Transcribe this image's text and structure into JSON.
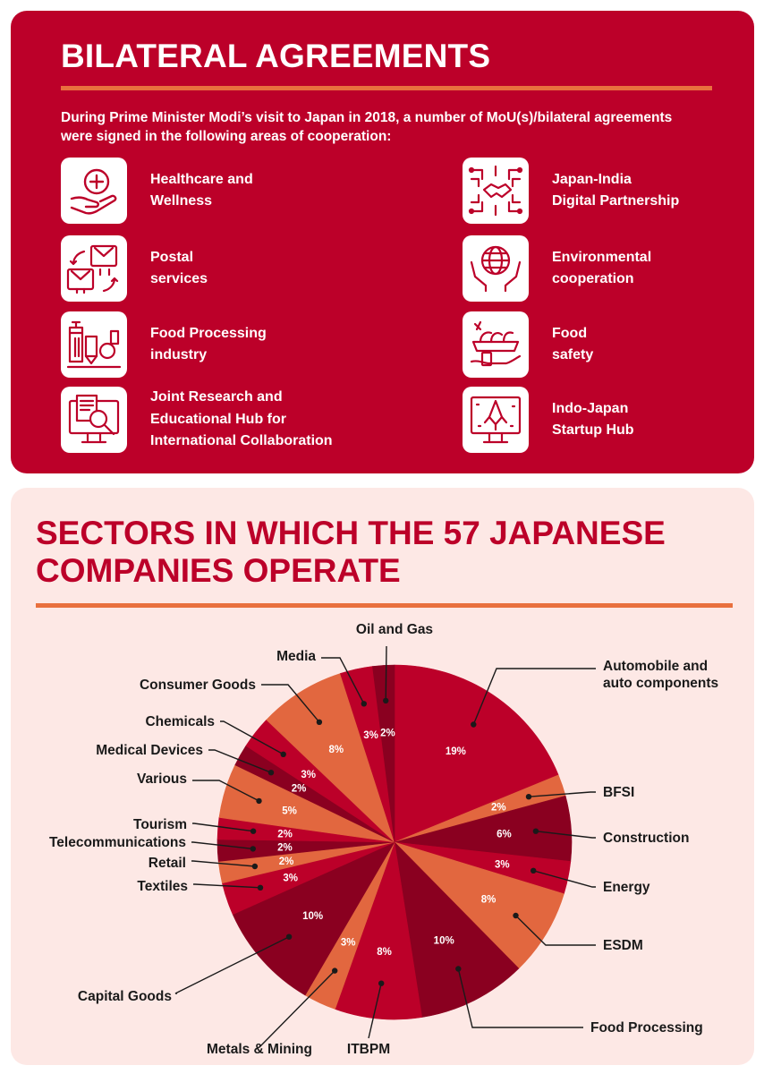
{
  "agreements": {
    "title": "BILATERAL AGREEMENTS",
    "intro": "During Prime Minister Modi’s visit to Japan in 2018, a number of MoU(s)/bilateral agreements were signed in the following areas of cooperation:",
    "items": [
      {
        "label_1": "Healthcare and",
        "label_2": "Wellness",
        "label_3": "",
        "icon": "healthcare-icon"
      },
      {
        "label_1": "Postal",
        "label_2": "services",
        "label_3": "",
        "icon": "postal-icon"
      },
      {
        "label_1": "Food Processing",
        "label_2": "industry",
        "label_3": "",
        "icon": "factory-icon"
      },
      {
        "label_1": "Joint Research and",
        "label_2": "Educational Hub for",
        "label_3": "International Collaboration",
        "icon": "research-icon"
      },
      {
        "label_1": "Japan-India",
        "label_2": "Digital Partnership",
        "label_3": "",
        "icon": "digital-handshake-icon"
      },
      {
        "label_1": "Environmental",
        "label_2": "cooperation",
        "label_3": "",
        "icon": "globe-hands-icon"
      },
      {
        "label_1": "Food",
        "label_2": "safety",
        "label_3": "",
        "icon": "food-safety-icon"
      },
      {
        "label_1": "Indo-Japan",
        "label_2": "Startup Hub",
        "label_3": "",
        "icon": "startup-rocket-icon"
      }
    ]
  },
  "sectors": {
    "title_1": "SECTORS IN WHICH THE 57 JAPANESE",
    "title_2": "COMPANIES OPERATE"
  },
  "colors": {
    "red": "#bc0029",
    "dark_red": "#8a0020",
    "orange": "#e2673f",
    "accent_rule": "#e9703e",
    "bg_pink": "#fde8e5"
  },
  "chart_data": {
    "type": "pie",
    "title": "SECTORS IN WHICH THE 57 JAPANESE COMPANIES OPERATE",
    "slices": [
      {
        "name": "Automobile and auto components",
        "value": 19,
        "label": "19%",
        "color": "#bc0029"
      },
      {
        "name": "BFSI",
        "value": 2,
        "label": "2%",
        "color": "#e2673f"
      },
      {
        "name": "Construction",
        "value": 6,
        "label": "6%",
        "color": "#8a0020"
      },
      {
        "name": "Energy",
        "value": 3,
        "label": "3%",
        "color": "#bc0029"
      },
      {
        "name": "ESDM",
        "value": 8,
        "label": "8%",
        "color": "#e2673f"
      },
      {
        "name": "Food Processing",
        "value": 10,
        "label": "10%",
        "color": "#8a0020"
      },
      {
        "name": "ITBPM",
        "value": 8,
        "label": "8%",
        "color": "#bc0029"
      },
      {
        "name": "Metals & Mining",
        "value": 3,
        "label": "3%",
        "color": "#e2673f"
      },
      {
        "name": "Capital Goods",
        "value": 10,
        "label": "10%",
        "color": "#8a0020"
      },
      {
        "name": "Textiles",
        "value": 3,
        "label": "3%",
        "color": "#bc0029"
      },
      {
        "name": "Retail",
        "value": 2,
        "label": "2%",
        "color": "#e2673f"
      },
      {
        "name": "Telecommunications",
        "value": 2,
        "label": "2%",
        "color": "#8a0020"
      },
      {
        "name": "Tourism",
        "value": 2,
        "label": "2%",
        "color": "#bc0029"
      },
      {
        "name": "Various",
        "value": 5,
        "label": "5%",
        "color": "#e2673f"
      },
      {
        "name": "Medical Devices",
        "value": 2,
        "label": "2%",
        "color": "#8a0020"
      },
      {
        "name": "Chemicals",
        "value": 3,
        "label": "3%",
        "color": "#bc0029"
      },
      {
        "name": "Consumer Goods",
        "value": 8,
        "label": "8%",
        "color": "#e2673f"
      },
      {
        "name": "Media",
        "value": 3,
        "label": "3%",
        "color": "#bc0029"
      },
      {
        "name": "Oil and Gas",
        "value": 2,
        "label": "2%",
        "color": "#8a0020"
      }
    ],
    "callouts": [
      {
        "lines": [
          "Automobile and",
          "auto components"
        ]
      },
      {
        "lines": [
          "BFSI"
        ]
      },
      {
        "lines": [
          "Construction"
        ]
      },
      {
        "lines": [
          "Energy"
        ]
      },
      {
        "lines": [
          "ESDM"
        ]
      },
      {
        "lines": [
          "Food Processing"
        ]
      },
      {
        "lines": [
          "ITBPM"
        ]
      },
      {
        "lines": [
          "Metals & Mining"
        ]
      },
      {
        "lines": [
          "Capital Goods"
        ]
      },
      {
        "lines": [
          "Textiles"
        ]
      },
      {
        "lines": [
          "Retail"
        ]
      },
      {
        "lines": [
          "Telecommunications"
        ]
      },
      {
        "lines": [
          "Tourism"
        ]
      },
      {
        "lines": [
          "Various"
        ]
      },
      {
        "lines": [
          "Medical Devices"
        ]
      },
      {
        "lines": [
          "Chemicals"
        ]
      },
      {
        "lines": [
          "Consumer Goods"
        ]
      },
      {
        "lines": [
          "Media"
        ]
      },
      {
        "lines": [
          "Oil and Gas"
        ]
      }
    ]
  }
}
